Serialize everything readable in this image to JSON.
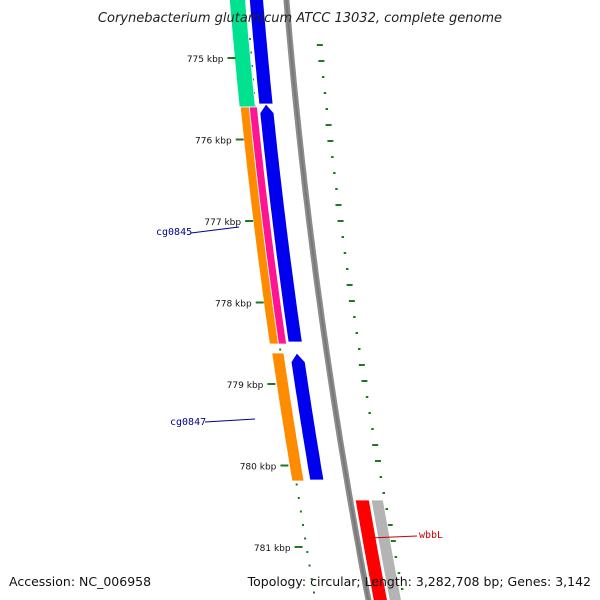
{
  "title": "Corynebacterium glutamicum ATCC 13032, complete genome",
  "footer": {
    "accession": "Accession: NC_006958",
    "summary": "Topology: circular; Length: 3,282,708 bp; Genes: 3,142"
  },
  "ticks": [
    {
      "label": "775 kbp"
    },
    {
      "label": "776 kbp"
    },
    {
      "label": "777 kbp"
    },
    {
      "label": "778 kbp"
    },
    {
      "label": "779 kbp"
    },
    {
      "label": "780 kbp"
    },
    {
      "label": "781 kbp"
    }
  ],
  "gene_labels": [
    {
      "name": "cg0845",
      "color": "#00008b"
    },
    {
      "name": "cg0847",
      "color": "#00008b"
    },
    {
      "name": "wbbL",
      "color": "#cc0000"
    }
  ],
  "colors": {
    "backbone": "#8c8c8c",
    "tick_green": "#1f7a1f",
    "cds_blue": "#0000ee",
    "cds_orange": "#ff8c00",
    "cds_pink": "#ff1493",
    "cds_teal": "#00e28f",
    "cds_red": "#ff0000",
    "cds_gray": "#b4b4b4"
  }
}
